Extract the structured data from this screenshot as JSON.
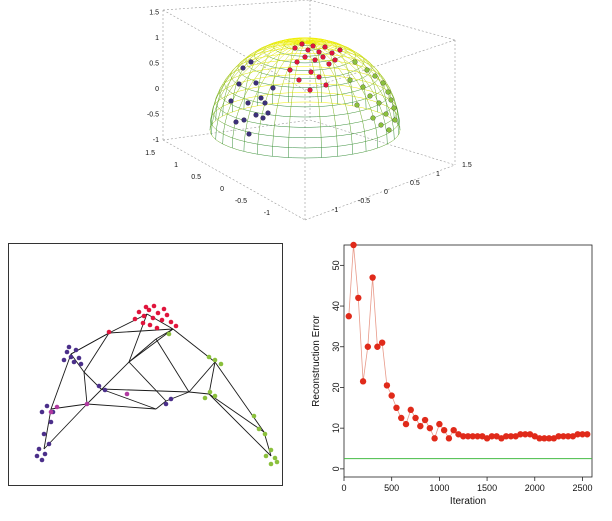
{
  "chart_data": [
    {
      "type": "scatter",
      "panel": "3d-hemisphere-with-points",
      "title": "",
      "z_ticks": [
        "-1",
        "-0.5",
        "0",
        "0.5",
        "1",
        "1.5"
      ],
      "x_ticks": [
        "1.5",
        "1",
        "0.5",
        "0",
        "-0.5",
        "-1"
      ],
      "y_ticks": [
        "-1",
        "-0.5",
        "0",
        "0.5",
        "1",
        "1.5"
      ],
      "surface": "hemisphere mesh",
      "surface_colors": {
        "top": "#f2f000",
        "bottom": "#2e8a3c"
      },
      "point_groups": [
        {
          "color": "#3b2f7a",
          "count": 15
        },
        {
          "color": "#e0143c",
          "count": 20
        },
        {
          "color": "#8bc03c",
          "count": 17
        }
      ]
    },
    {
      "type": "scatter",
      "panel": "2d-embedding-graph",
      "point_groups": [
        {
          "color": "#e0143c"
        },
        {
          "color": "#4b2f8a"
        },
        {
          "color": "#8bc03c"
        },
        {
          "color": "#b03aa0"
        }
      ],
      "edge_color": "#1a1a1a"
    },
    {
      "type": "line",
      "xlabel": "Iteration",
      "ylabel": "Reconstruction Error",
      "xlim": [
        0,
        2600
      ],
      "ylim": [
        -2,
        55
      ],
      "x_ticks": [
        0,
        500,
        1000,
        1500,
        2000,
        2500
      ],
      "y_ticks": [
        0,
        10,
        20,
        30,
        40,
        50
      ],
      "series": [
        {
          "color": "#e02a1a",
          "x": [
            50,
            100,
            150,
            200,
            250,
            300,
            350,
            400,
            450,
            500,
            550,
            600,
            650,
            700,
            750,
            800,
            850,
            900,
            950,
            1000,
            1050,
            1100,
            1150,
            1200,
            1250,
            1300,
            1350,
            1400,
            1450,
            1500,
            1550,
            1600,
            1650,
            1700,
            1750,
            1800,
            1850,
            1900,
            1950,
            2000,
            2050,
            2100,
            2150,
            2200,
            2250,
            2300,
            2350,
            2400,
            2450,
            2500,
            2550
          ],
          "y": [
            37.5,
            55,
            42,
            21.5,
            30,
            47,
            30,
            31,
            20.5,
            18,
            15,
            12.5,
            11,
            14.5,
            12.5,
            10.5,
            12,
            10,
            7.5,
            11,
            9.5,
            7.5,
            9.5,
            8.5,
            8,
            8,
            8,
            8,
            8,
            7.5,
            8,
            8,
            7.5,
            8,
            8,
            8,
            8.5,
            8.5,
            8.5,
            8,
            7.5,
            7.5,
            7.5,
            7.5,
            8,
            8,
            8,
            8,
            8.5,
            8.5,
            8.5
          ]
        }
      ],
      "reference_line": {
        "y": 2.5,
        "color": "#44bb44"
      }
    }
  ]
}
